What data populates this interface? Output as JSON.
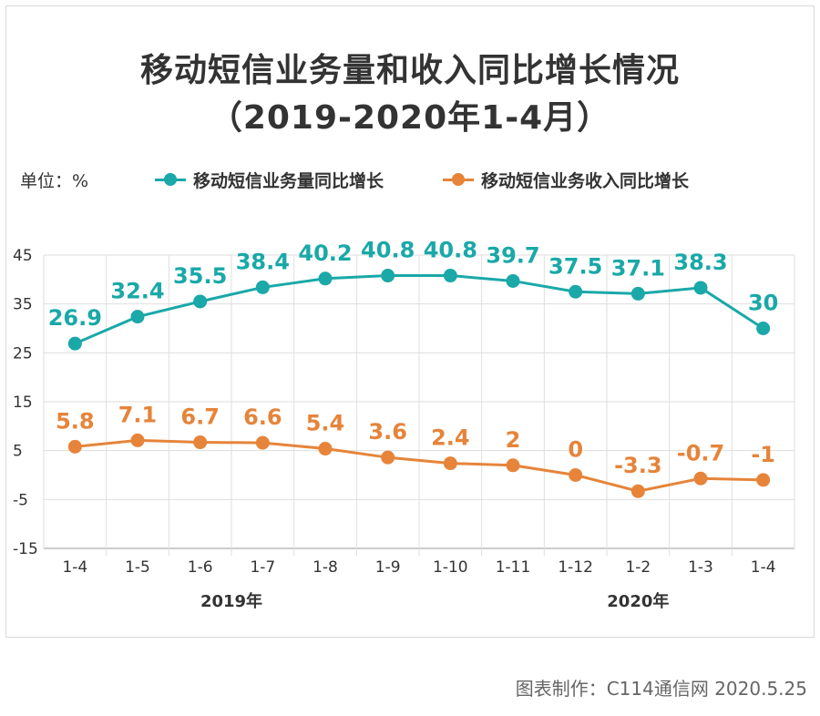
{
  "title_line1": "移动短信业务量和收入同比增长情况",
  "title_line2": "（2019-2020年1-4月）",
  "unit_label": "单位：%",
  "credit": "图表制作：C114通信网  2020.5.25",
  "year_labels": [
    "2019年",
    "2020年"
  ],
  "colors": {
    "teal": "#1aa8a8",
    "orange": "#e6843a",
    "grid": "#dedede"
  },
  "chart_data": {
    "type": "line",
    "categories": [
      "1-4",
      "1-5",
      "1-6",
      "1-7",
      "1-8",
      "1-9",
      "1-10",
      "1-11",
      "1-12",
      "1-2",
      "1-3",
      "1-4"
    ],
    "ylim": [
      -15,
      45
    ],
    "yticks": [
      45,
      35,
      25,
      15,
      5,
      -5,
      -15
    ],
    "grid": true,
    "legend": "top",
    "series": [
      {
        "name": "移动短信业务量同比增长",
        "color": "#1aa8a8",
        "values": [
          26.9,
          32.4,
          35.5,
          38.4,
          40.2,
          40.8,
          40.8,
          39.7,
          37.5,
          37.1,
          38.3,
          30
        ],
        "labels": [
          "26.9",
          "32.4",
          "35.5",
          "38.4",
          "40.2",
          "40.8",
          "40.8",
          "39.7",
          "37.5",
          "37.1",
          "38.3",
          "30"
        ]
      },
      {
        "name": "移动短信业务收入同比增长",
        "color": "#e6843a",
        "values": [
          5.8,
          7.1,
          6.7,
          6.6,
          5.4,
          3.6,
          2.4,
          2,
          0,
          -3.3,
          -0.7,
          -1
        ],
        "labels": [
          "5.8",
          "7.1",
          "6.7",
          "6.6",
          "5.4",
          "3.6",
          "2.4",
          "2",
          "0",
          "-3.3",
          "-0.7",
          "-1"
        ]
      }
    ]
  }
}
